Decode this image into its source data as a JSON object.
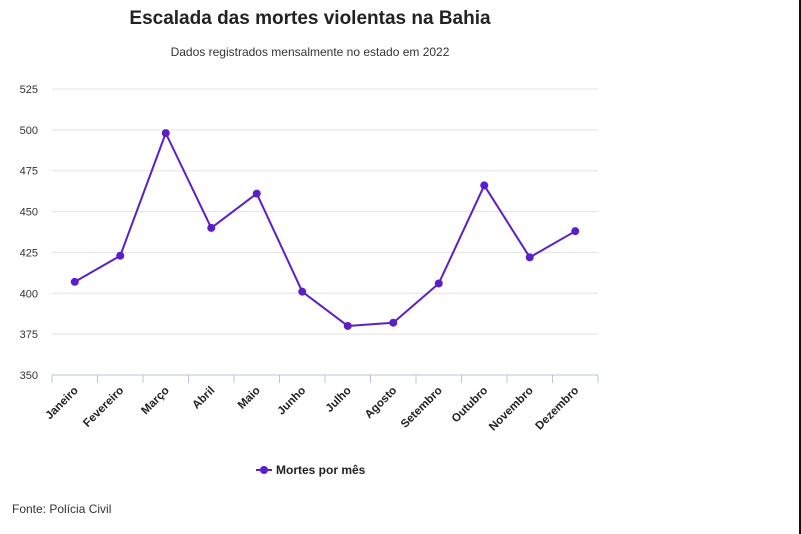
{
  "chart_data": {
    "type": "line",
    "title": "Escalada das mortes violentas na Bahia",
    "subtitle": "Dados registrados mensalmente no estado em 2022",
    "source": "Fonte: Polícia Civil",
    "categories": [
      "Janeiro",
      "Fevereiro",
      "Março",
      "Abril",
      "Maio",
      "Junho",
      "Julho",
      "Agosto",
      "Setembro",
      "Outubro",
      "Novembro",
      "Dezembro"
    ],
    "series": [
      {
        "name": "Mortes por mês",
        "values": [
          407,
          423,
          498,
          440,
          461,
          401,
          380,
          382,
          406,
          466,
          422,
          438
        ]
      }
    ],
    "ylim": [
      350,
      525
    ],
    "yticks": [
      350,
      375,
      400,
      425,
      450,
      475,
      500,
      525
    ],
    "grid": true,
    "legend": "bottom-center",
    "colors": {
      "series": "#5b1fc7",
      "grid": "#e3e3e3",
      "axis": "#b8c4d6"
    }
  }
}
